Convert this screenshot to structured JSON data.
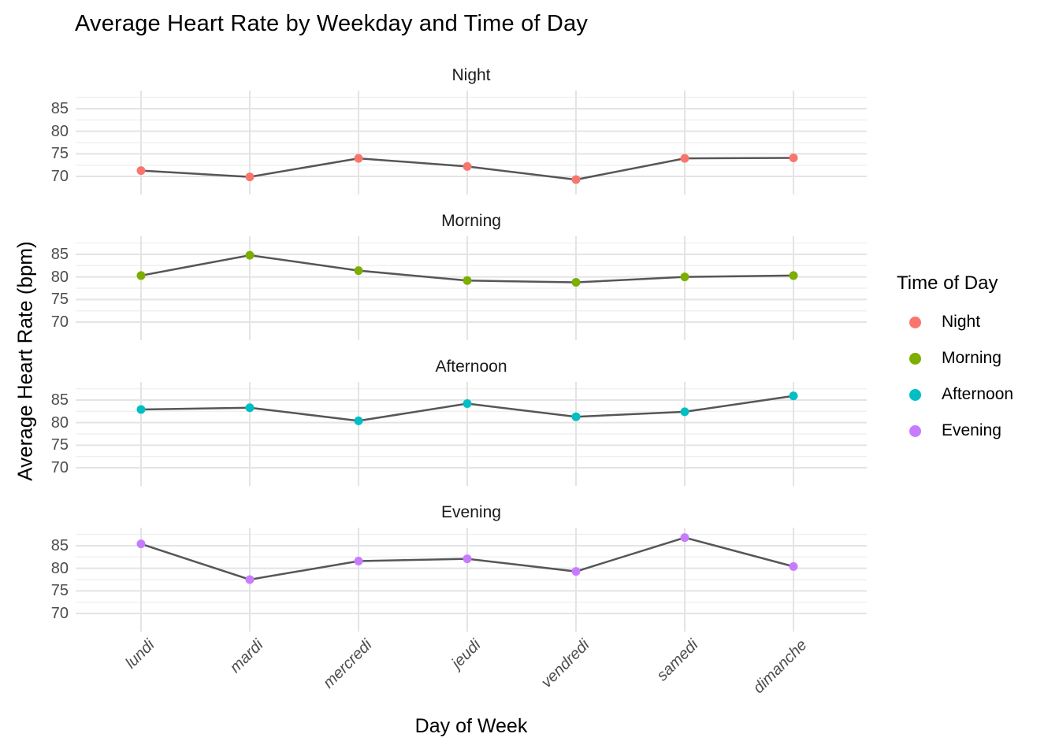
{
  "chart_data": {
    "type": "line",
    "title": "Average Heart Rate by Weekday and Time of Day",
    "xlabel": "Day of Week",
    "ylabel": "Average Heart Rate (bpm)",
    "legend_title": "Time of Day",
    "categories": [
      "lundi",
      "mardi",
      "mercredi",
      "jeudi",
      "vendredi",
      "samedi",
      "dimanche"
    ],
    "y_ticks": [
      85,
      80,
      75,
      70
    ],
    "y_minor_ticks": [
      87.5,
      82.5,
      77.5,
      72.5
    ],
    "ylim": [
      66,
      89
    ],
    "grid": true,
    "legend_position": "right",
    "facets": [
      {
        "name": "Night",
        "color": "#F8766D",
        "values": [
          71.3,
          69.9,
          74.0,
          72.2,
          69.3,
          74.0,
          74.1
        ]
      },
      {
        "name": "Morning",
        "color": "#7CAE00",
        "values": [
          80.3,
          84.8,
          81.4,
          79.2,
          78.8,
          80.0,
          80.3
        ]
      },
      {
        "name": "Afternoon",
        "color": "#00BFC4",
        "values": [
          82.9,
          83.3,
          80.4,
          84.2,
          81.3,
          82.4,
          85.9
        ]
      },
      {
        "name": "Evening",
        "color": "#C77CFF",
        "values": [
          85.4,
          77.5,
          81.6,
          82.1,
          79.3,
          86.8,
          80.4
        ]
      }
    ],
    "line_color": "#565656",
    "grid_major_color": "#E4E4E4",
    "grid_minor_color": "#F0F0F0",
    "axis_text_color": "#4d4d4d"
  }
}
